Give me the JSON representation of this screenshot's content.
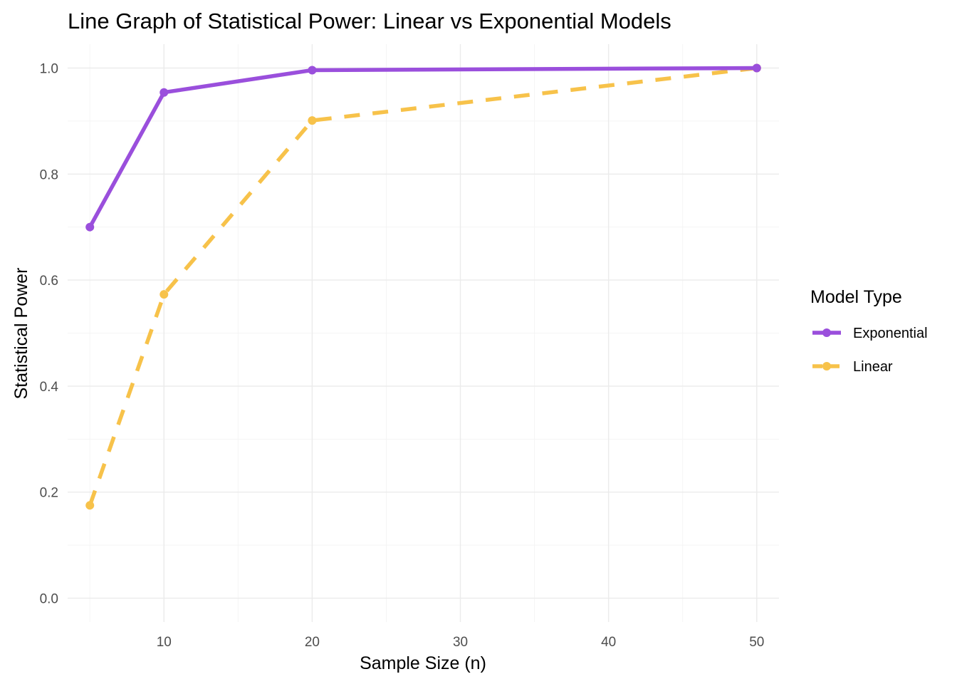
{
  "chart_data": {
    "type": "line",
    "title": "Line Graph of Statistical Power: Linear vs Exponential Models",
    "xlabel": "Sample Size (n)",
    "ylabel": "Statistical Power",
    "xlim": [
      3.5,
      51.5
    ],
    "ylim": [
      -0.045,
      1.045
    ],
    "x_ticks": [
      10,
      20,
      30,
      40,
      50
    ],
    "x_tick_labels": [
      "10",
      "20",
      "30",
      "40",
      "50"
    ],
    "y_ticks": [
      0.0,
      0.2,
      0.4,
      0.6,
      0.8,
      1.0
    ],
    "y_tick_labels": [
      "0.0",
      "0.2",
      "0.4",
      "0.6",
      "0.8",
      "1.0"
    ],
    "grid": true,
    "legend": {
      "title": "Model Type",
      "position": "right"
    },
    "x": [
      5,
      10,
      20,
      50
    ],
    "series": [
      {
        "name": "Exponential",
        "values": [
          0.7,
          0.954,
          0.996,
          1.0
        ],
        "color": "#9a4fdc",
        "line_style": "solid"
      },
      {
        "name": "Linear",
        "values": [
          0.175,
          0.573,
          0.901,
          1.0
        ],
        "color": "#f7c24a",
        "line_style": "dashed"
      }
    ]
  }
}
